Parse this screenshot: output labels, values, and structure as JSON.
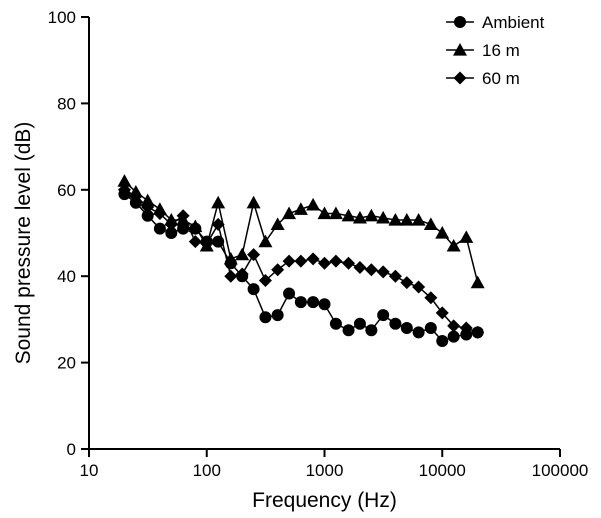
{
  "chart_data": {
    "type": "line",
    "xlabel": "Frequency (Hz)",
    "ylabel": "Sound pressure level (dB)",
    "xscale": "log",
    "xlim": [
      10,
      100000
    ],
    "ylim": [
      0,
      100
    ],
    "x_ticks": [
      10,
      100,
      1000,
      10000,
      100000
    ],
    "x_tick_labels": [
      "10",
      "100",
      "1000",
      "10000",
      "100000"
    ],
    "y_ticks": [
      0,
      20,
      40,
      60,
      80,
      100
    ],
    "y_tick_labels": [
      "0",
      "20",
      "40",
      "60",
      "80",
      "100"
    ],
    "grid": false,
    "legend": {
      "position": "top-right"
    },
    "x": [
      20,
      25,
      31.5,
      40,
      50,
      63,
      80,
      100,
      125,
      160,
      200,
      250,
      315,
      400,
      500,
      630,
      800,
      1000,
      1250,
      1600,
      2000,
      2500,
      3150,
      4000,
      5000,
      6300,
      8000,
      10000,
      12500,
      16000,
      20000
    ],
    "series": [
      {
        "name": "Ambient",
        "marker": "circle",
        "values": [
          59,
          57,
          54,
          51,
          50,
          51,
          51,
          48,
          48,
          43,
          40,
          37,
          30.5,
          31,
          36,
          34,
          34,
          33.5,
          29,
          27.5,
          29,
          27.5,
          31,
          29,
          28,
          27,
          28,
          25,
          26,
          26.5,
          27
        ]
      },
      {
        "name": "16 m",
        "marker": "triangle",
        "values": [
          62,
          59.5,
          57.5,
          55.5,
          53,
          53,
          51.5,
          47,
          57,
          44,
          45,
          57,
          48,
          52,
          54.5,
          55.5,
          56.5,
          54.5,
          54.5,
          54,
          53.5,
          54,
          53.5,
          53,
          53,
          53,
          52,
          50,
          47,
          49,
          38.5
        ]
      },
      {
        "name": "60 m",
        "marker": "diamond",
        "values": [
          60,
          58.5,
          56,
          54.5,
          52,
          54,
          48,
          47.5,
          52,
          40,
          40.5,
          45,
          39,
          41.5,
          43.5,
          43.5,
          44,
          43,
          43.5,
          43,
          42,
          41.5,
          41,
          40,
          38.5,
          37.5,
          35,
          31.5,
          28.5,
          28,
          27
        ]
      }
    ]
  }
}
